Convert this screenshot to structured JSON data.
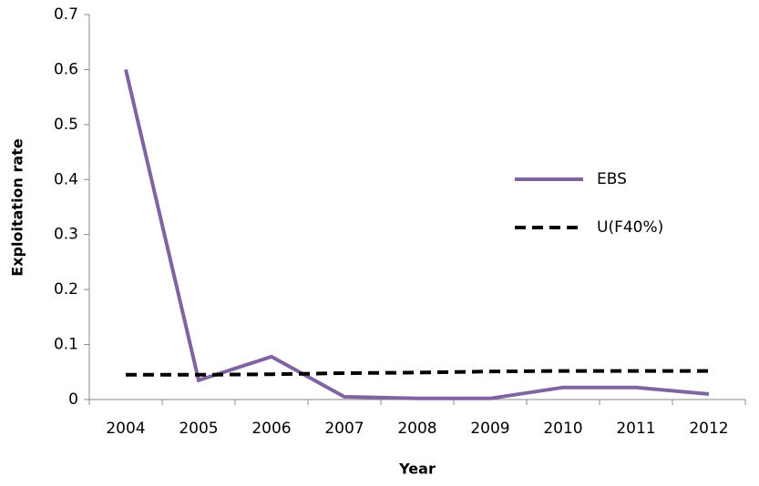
{
  "chart_data": {
    "type": "line",
    "x_label": "Year",
    "y_label": "Exploitation rate",
    "categories": [
      "2004",
      "2005",
      "2006",
      "2007",
      "2008",
      "2009",
      "2010",
      "2011",
      "2012"
    ],
    "series": [
      {
        "name": "EBS",
        "color": "#8064a2",
        "dashed": false,
        "values": [
          0.6,
          0.035,
          0.078,
          0.005,
          0.002,
          0.002,
          0.022,
          0.022,
          0.01
        ]
      },
      {
        "name": "U(F40%)",
        "color": "#000000",
        "dashed": true,
        "values": [
          0.045,
          0.045,
          0.046,
          0.048,
          0.049,
          0.051,
          0.052,
          0.052,
          0.052
        ]
      }
    ],
    "ylim": [
      0,
      0.7
    ],
    "yticks": [
      0,
      0.1,
      0.2,
      0.3,
      0.4,
      0.5,
      0.6,
      0.7
    ],
    "grid": false
  }
}
